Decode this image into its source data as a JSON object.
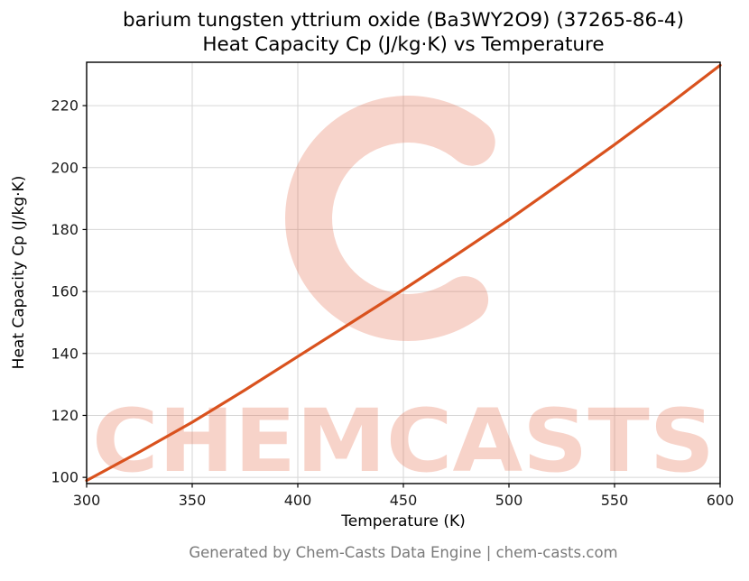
{
  "chart_data": {
    "type": "line",
    "title": "barium tungsten yttrium oxide (Ba3WY2O9) (37265-86-4)",
    "subtitle": "Heat Capacity Cp (J/kg·K) vs Temperature",
    "xlabel": "Temperature (K)",
    "ylabel": "Heat Capacity Cp (J/kg·K)",
    "xlim": [
      300,
      600
    ],
    "ylim": [
      98,
      234
    ],
    "xticks": [
      300,
      350,
      400,
      450,
      500,
      550,
      600
    ],
    "yticks": [
      100,
      120,
      140,
      160,
      180,
      200,
      220
    ],
    "grid": true,
    "legend": false,
    "line_color": "#d9521e",
    "series": [
      {
        "name": "Heat Capacity Cp",
        "x": [
          300,
          325,
          350,
          375,
          400,
          425,
          450,
          475,
          500,
          525,
          550,
          575,
          600
        ],
        "y": [
          99,
          108.2,
          117.8,
          128.2,
          139,
          149.8,
          160.6,
          171.8,
          183.2,
          195.2,
          207.4,
          220,
          233
        ]
      }
    ]
  },
  "watermark": {
    "text": "CHEMCASTS"
  },
  "footer": {
    "text": "Generated by Chem-Casts Data Engine | chem-casts.com"
  },
  "colors": {
    "line": "#d9521e",
    "watermark": "#e35f3d",
    "grid": "#d6d6d6",
    "axis": "#000000",
    "footer_text": "#7a7a7a"
  }
}
